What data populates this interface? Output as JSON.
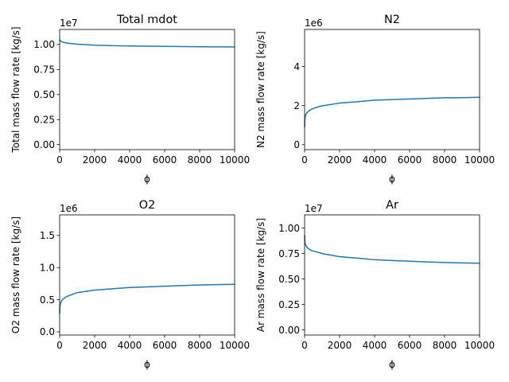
{
  "chart_data": [
    {
      "type": "line",
      "title": "Total mdot",
      "xlabel": "ϕ",
      "ylabel": "Total mass flow rate [kg/s]",
      "offset_label": "1e7",
      "xlim": [
        0,
        10000
      ],
      "ylim": [
        -0.05,
        1.15
      ],
      "x_ticks": [
        0,
        2000,
        4000,
        6000,
        8000,
        10000
      ],
      "x_tick_labels": [
        "0",
        "2000",
        "4000",
        "6000",
        "8000",
        "10000"
      ],
      "y_ticks": [
        0,
        0.25,
        0.5,
        0.75,
        1.0
      ],
      "y_tick_labels": [
        "0.00",
        "0.25",
        "0.50",
        "0.75",
        "1.00"
      ],
      "series": [
        {
          "color": "#1f77b4",
          "x": [
            0,
            50,
            150,
            300,
            500,
            1000,
            2000,
            3000,
            4000,
            5000,
            6000,
            7000,
            8000,
            9000,
            10000
          ],
          "y": [
            1.05,
            1.035,
            1.025,
            1.018,
            1.012,
            1.003,
            0.993,
            0.988,
            0.985,
            0.983,
            0.981,
            0.979,
            0.977,
            0.976,
            0.975
          ]
        }
      ]
    },
    {
      "type": "line",
      "title": "N2",
      "xlabel": "ϕ",
      "ylabel": "N2 mass flow rate [kg/s]",
      "offset_label": "1e6",
      "xlim": [
        0,
        10000
      ],
      "ylim": [
        -0.25,
        5.9
      ],
      "x_ticks": [
        0,
        2000,
        4000,
        6000,
        8000,
        10000
      ],
      "x_tick_labels": [
        "0",
        "2000",
        "4000",
        "6000",
        "8000",
        "10000"
      ],
      "y_ticks": [
        0,
        2,
        4
      ],
      "y_tick_labels": [
        "0",
        "2",
        "4"
      ],
      "series": [
        {
          "color": "#1f77b4",
          "x": [
            0,
            10,
            30,
            60,
            100,
            200,
            400,
            700,
            1000,
            2000,
            3000,
            4000,
            5000,
            6000,
            7000,
            8000,
            9000,
            10000
          ],
          "y": [
            0.9,
            1.25,
            1.42,
            1.52,
            1.6,
            1.7,
            1.82,
            1.92,
            1.99,
            2.13,
            2.2,
            2.28,
            2.31,
            2.34,
            2.37,
            2.4,
            2.41,
            2.43
          ]
        }
      ]
    },
    {
      "type": "line",
      "title": "O2",
      "xlabel": "ϕ",
      "ylabel": "O2 mass flow rate [kg/s]",
      "offset_label": "1e6",
      "xlim": [
        0,
        10000
      ],
      "ylim": [
        -0.05,
        1.82
      ],
      "x_ticks": [
        0,
        2000,
        4000,
        6000,
        8000,
        10000
      ],
      "x_tick_labels": [
        "0",
        "2000",
        "4000",
        "6000",
        "8000",
        "10000"
      ],
      "y_ticks": [
        0,
        0.5,
        1.0,
        1.5
      ],
      "y_tick_labels": [
        "0.0",
        "0.5",
        "1.0",
        "1.5"
      ],
      "series": [
        {
          "color": "#1f77b4",
          "x": [
            0,
            10,
            30,
            60,
            100,
            200,
            400,
            700,
            1000,
            2000,
            3000,
            4000,
            5000,
            6000,
            7000,
            8000,
            9000,
            10000
          ],
          "y": [
            0.28,
            0.37,
            0.42,
            0.45,
            0.48,
            0.51,
            0.55,
            0.58,
            0.61,
            0.65,
            0.67,
            0.69,
            0.7,
            0.71,
            0.72,
            0.73,
            0.735,
            0.74
          ]
        }
      ]
    },
    {
      "type": "line",
      "title": "Ar",
      "xlabel": "ϕ",
      "ylabel": "Ar mass flow rate [kg/s]",
      "offset_label": "1e7",
      "xlim": [
        0,
        10000
      ],
      "ylim": [
        -0.05,
        1.13
      ],
      "x_ticks": [
        0,
        2000,
        4000,
        6000,
        8000,
        10000
      ],
      "x_tick_labels": [
        "0",
        "2000",
        "4000",
        "6000",
        "8000",
        "10000"
      ],
      "y_ticks": [
        0,
        0.25,
        0.5,
        0.75,
        1.0
      ],
      "y_tick_labels": [
        "0.00",
        "0.25",
        "0.50",
        "0.75",
        "1.00"
      ],
      "series": [
        {
          "color": "#1f77b4",
          "x": [
            0,
            10,
            30,
            60,
            100,
            200,
            400,
            700,
            1000,
            2000,
            3000,
            4000,
            5000,
            6000,
            7000,
            8000,
            9000,
            10000
          ],
          "y": [
            0.93,
            0.88,
            0.85,
            0.835,
            0.82,
            0.8,
            0.78,
            0.765,
            0.75,
            0.72,
            0.705,
            0.69,
            0.682,
            0.675,
            0.668,
            0.662,
            0.658,
            0.655
          ]
        }
      ]
    }
  ]
}
